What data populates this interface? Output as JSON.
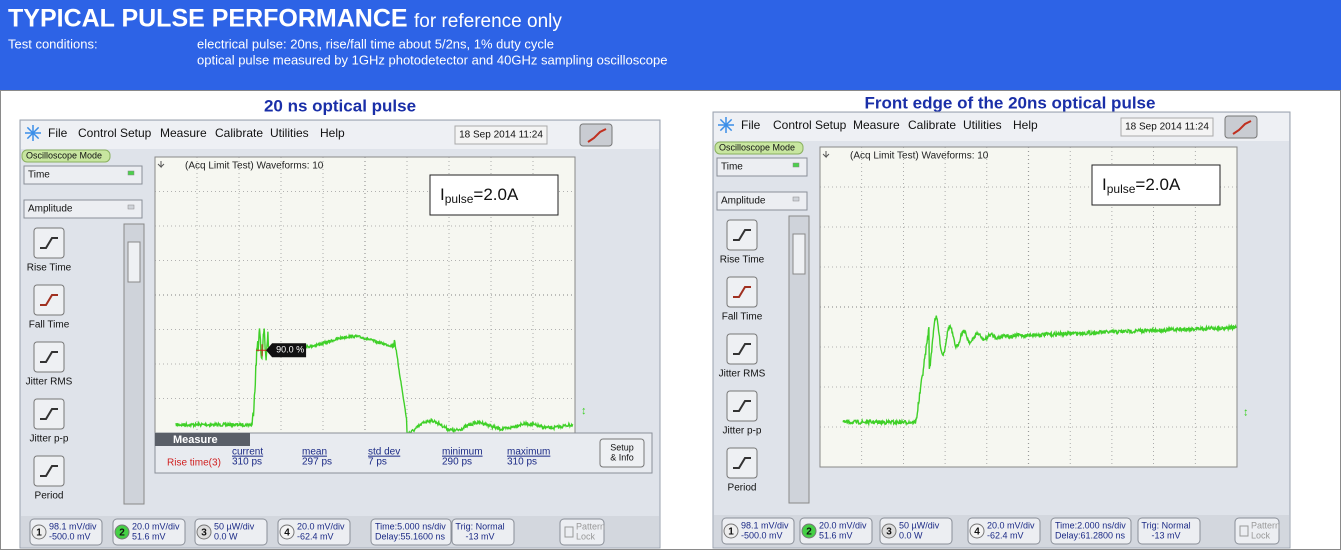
{
  "header": {
    "title": "TYPICAL PULSE PERFORMANCE",
    "subtitle": "for reference only",
    "conditions_label": "Test conditions:",
    "conditions": [
      "electrical pulse: 20ns, rise/fall time about  5/2ns, 1% duty cycle",
      "optical pulse measured by 1GHz photodetector and 40GHz sampling oscilloscope"
    ]
  },
  "panels": [
    {
      "title": "20 ns optical pulse",
      "scope": {
        "menu": [
          "File",
          "Control",
          "Setup",
          "Measure",
          "Calibrate",
          "Utilities",
          "Help"
        ],
        "datetime": "18 Sep 2014  11:24",
        "mode": "Oscilloscope Mode",
        "selectors": [
          "Time",
          "Amplitude"
        ],
        "tools": [
          "Rise Time",
          "Fall Time",
          "Jitter RMS",
          "Jitter p-p",
          "Period"
        ],
        "status": "(Acq Limit Test)  Waveforms: 10",
        "annotation": {
          "symbol": "I",
          "subscript": "pulse",
          "value": "=2.0A"
        },
        "marker": "90.0 %",
        "measure": {
          "title": "Measure",
          "name": "Rise time(3)",
          "columns": [
            [
              "current",
              "310 ps"
            ],
            [
              "mean",
              "297 ps"
            ],
            [
              "std dev",
              "7 ps"
            ],
            [
              "minimum",
              "290 ps"
            ],
            [
              "maximum",
              "310 ps"
            ]
          ],
          "setup": [
            "Setup",
            "& Info"
          ]
        },
        "channels": [
          {
            "number": "1",
            "lines": [
              "98.1 mV/div",
              "-500.0 mV"
            ]
          },
          {
            "number": "2",
            "lines": [
              "20.0 mV/div",
              "51.6 mV"
            ]
          },
          {
            "number": "3",
            "lines": [
              "50 µW/div",
              "0.0 W"
            ]
          },
          {
            "number": "4",
            "lines": [
              "20.0 mV/div",
              "-62.4 mV"
            ]
          }
        ],
        "timebase": [
          "Time:5.000 ns/div",
          "Delay:55.1600 ns"
        ],
        "trigger": [
          "Trig: Normal",
          "-13 mV"
        ],
        "pattern": [
          "Pattern",
          "Lock"
        ]
      }
    },
    {
      "title": "Front edge of the 20ns optical pulse",
      "scope": {
        "menu": [
          "File",
          "Control",
          "Setup",
          "Measure",
          "Calibrate",
          "Utilities",
          "Help"
        ],
        "datetime": "18 Sep 2014  11:24",
        "mode": "Oscilloscope Mode",
        "selectors": [
          "Time",
          "Amplitude"
        ],
        "tools": [
          "Rise Time",
          "Fall Time",
          "Jitter RMS",
          "Jitter p-p",
          "Period"
        ],
        "status": "(Acq Limit Test)  Waveforms: 10",
        "annotation": {
          "symbol": "I",
          "subscript": "pulse",
          "value": "=2.0A"
        },
        "channels": [
          {
            "number": "1",
            "lines": [
              "98.1 mV/div",
              "-500.0 mV"
            ]
          },
          {
            "number": "2",
            "lines": [
              "20.0 mV/div",
              "51.6 mV"
            ]
          },
          {
            "number": "3",
            "lines": [
              "50 µW/div",
              "0.0 W"
            ]
          },
          {
            "number": "4",
            "lines": [
              "20.0 mV/div",
              "-62.4 mV"
            ]
          }
        ],
        "timebase": [
          "Time:2.000 ns/div",
          "Delay:61.2800 ns"
        ],
        "trigger": [
          "Trig: Normal",
          "-13 mV"
        ],
        "pattern": [
          "Pattern",
          "Lock"
        ]
      }
    }
  ]
}
